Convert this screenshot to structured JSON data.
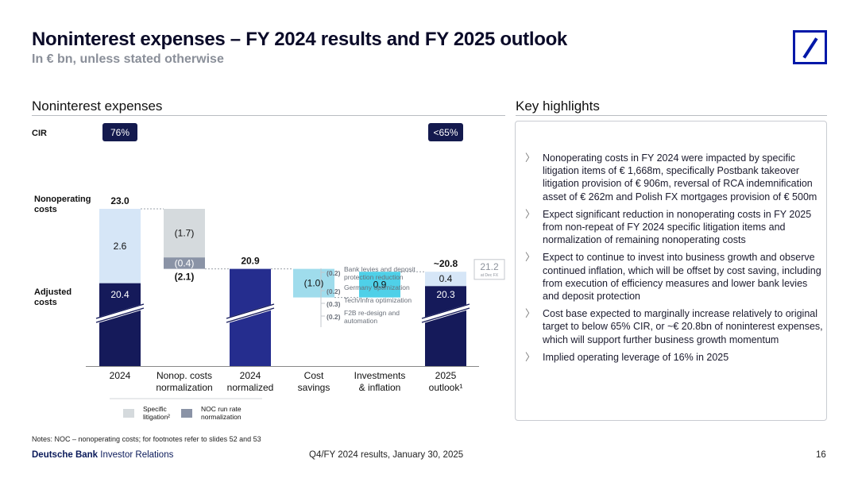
{
  "header": {
    "title": "Noninterest expenses – FY 2024 results and FY 2025 outlook",
    "subtitle": "In € bn, unless stated otherwise"
  },
  "left_section": {
    "title": "Noninterest expenses"
  },
  "right_section": {
    "title": "Key highlights"
  },
  "highlights": [
    "Nonoperating costs in FY 2024 were impacted by specific litigation items of € 1,668m, specifically Postbank takeover litigation provision of € 906m, reversal of RCA indemnification asset of € 262m and Polish FX mortgages provision of € 500m",
    "Expect significant reduction in nonoperating costs in FY 2025 from non-repeat of FY 2024 specific litigation items and normalization of remaining nonoperating costs",
    "Expect to continue to invest into business growth and observe continued inflation, which will be offset by cost saving, including from execution of efficiency measures and lower bank levies and deposit protection",
    "Cost base expected to marginally increase relatively to original target to below 65% CIR, or ~€ 20.8bn of noninterest expenses, which will support further business growth momentum",
    "Implied operating leverage of 16% in 2025"
  ],
  "highlight_bullet": "〉",
  "chart_data": {
    "type": "waterfall",
    "categories": [
      "2024",
      "Nonop. costs normalization",
      "2024 normalized",
      "Cost savings",
      "Investments & inflation",
      "2025 outlook¹"
    ],
    "category_lines": [
      [
        "2024"
      ],
      [
        "Nonop. costs",
        "normalization"
      ],
      [
        "2024",
        "normalized"
      ],
      [
        "Cost",
        "savings"
      ],
      [
        "Investments",
        "& inflation"
      ],
      [
        "2025",
        "outlook¹"
      ]
    ],
    "row_labels": {
      "cir": "CIR",
      "nonoperating": [
        "Nonoperating",
        "costs"
      ],
      "adjusted": [
        "Adjusted",
        "costs"
      ]
    },
    "cir": [
      {
        "category": "2024",
        "label": "76%"
      },
      {
        "category": "2025 outlook¹",
        "label": "<65%"
      }
    ],
    "bars": [
      {
        "category": "2024",
        "adjusted": 20.4,
        "nonoperating": 2.6,
        "total": 23.0,
        "adjusted_label": "20.4",
        "nonoperating_label": "2.6",
        "total_label": "23.0"
      },
      {
        "category": "Nonop. costs normalization",
        "specific_litigation": -1.7,
        "noc_run_rate": -0.4,
        "total": -2.1,
        "specific_litigation_label": "(1.7)",
        "noc_run_rate_label": "(0.4)",
        "total_label": "(2.1)"
      },
      {
        "category": "2024 normalized",
        "value": 20.9,
        "label": "20.9"
      },
      {
        "category": "Cost savings",
        "value": -1.0,
        "label": "(1.0)"
      },
      {
        "category": "Investments & inflation",
        "value": 0.9,
        "label": "0.9"
      },
      {
        "category": "2025 outlook¹",
        "adjusted": 20.3,
        "nonoperating": 0.4,
        "total": 20.8,
        "adjusted_label": "20.3",
        "nonoperating_label": "0.4",
        "total_label": "~20.8"
      }
    ],
    "fx_reference": {
      "value": 21.2,
      "label": "21.2",
      "note": "at Dec FX"
    },
    "cost_savings_breakdown": [
      {
        "value": "(0.2)",
        "label": [
          "Bank levies and deposit",
          "protection reduction"
        ]
      },
      {
        "value": "(0.2)",
        "label": [
          "Germany optimization"
        ]
      },
      {
        "value": "(0.3)",
        "label": [
          "Tech/Infra optimization"
        ]
      },
      {
        "value": "(0.2)",
        "label": [
          "F2B re-design and",
          "automation"
        ]
      }
    ],
    "legend": [
      {
        "key": "specific_litigation",
        "lines": [
          "Specific",
          "litigation²"
        ],
        "color": "#d5dadd"
      },
      {
        "key": "noc_run_rate",
        "lines": [
          "NOC run rate",
          "normalization"
        ],
        "color": "#8a93a6"
      }
    ],
    "axis_break": true,
    "colors": {
      "adjusted": "#151a5a",
      "nonoperating": "#d6e6f7",
      "normalized": "#252d8e",
      "cost_savings": "#9fdcec",
      "investments": "#4fd0e8",
      "specific_litigation": "#d5dadd",
      "noc_run_rate": "#8a93a6",
      "cir_badge": "#141a4e"
    }
  },
  "notes": "Notes: NOC – nonoperating costs; for footnotes refer to slides 52 and 53",
  "footer": {
    "brand_bold": "Deutsche Bank",
    "brand_rest": " Investor Relations",
    "center": "Q4/FY 2024 results, January 30, 2025",
    "page": "16"
  }
}
